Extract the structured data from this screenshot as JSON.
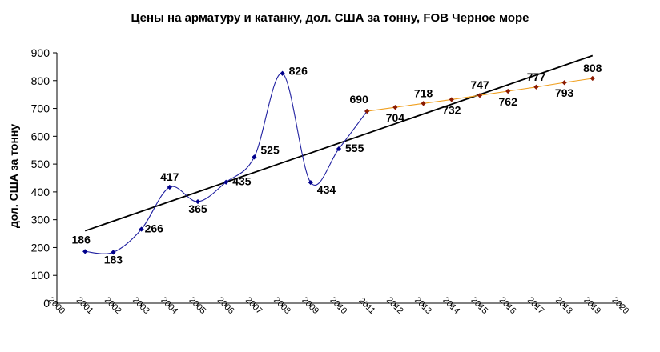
{
  "chart_data": {
    "type": "line",
    "title": "Цены на арматуру и катанку, дол. США за тонну, FOB Черное море",
    "ylabel": "дол. США за тонну",
    "xlabel": "",
    "ylim": [
      0,
      900
    ],
    "yticks": [
      "0",
      "100",
      "200",
      "300",
      "400",
      "500",
      "600",
      "700",
      "800",
      "900"
    ],
    "xticks": [
      "2000",
      "2001",
      "2002",
      "2003",
      "2004",
      "2005",
      "2006",
      "2007",
      "2008",
      "2009",
      "2010",
      "2011",
      "2012",
      "2013",
      "2014",
      "2015",
      "2016",
      "2017",
      "2018",
      "2019",
      "2020"
    ],
    "grid": false,
    "legend": "none",
    "series": [
      {
        "style": "actual",
        "color": "#1f1fa0",
        "x": [
          "2001",
          "2002",
          "2003",
          "2004",
          "2005",
          "2006",
          "2007",
          "2008",
          "2009",
          "2010",
          "2011"
        ],
        "values": [
          186,
          183,
          266,
          417,
          365,
          435,
          525,
          826,
          434,
          555,
          690
        ],
        "labels": [
          "186",
          "183",
          "266",
          "417",
          "365",
          "435",
          "525",
          "826",
          "434",
          "555",
          "690"
        ]
      },
      {
        "style": "forecast",
        "color": "#f0a020",
        "x": [
          "2011",
          "2012",
          "2013",
          "2014",
          "2015",
          "2016",
          "2017",
          "2018",
          "2019"
        ],
        "values": [
          690,
          704,
          718,
          732,
          747,
          762,
          777,
          793,
          808
        ],
        "labels": [
          "",
          "704",
          "718",
          "732",
          "747",
          "762",
          "777",
          "793",
          "808"
        ]
      }
    ],
    "trendline": {
      "color": "#000000",
      "x": [
        "2001",
        "2019"
      ],
      "values": [
        260,
        890
      ]
    }
  }
}
